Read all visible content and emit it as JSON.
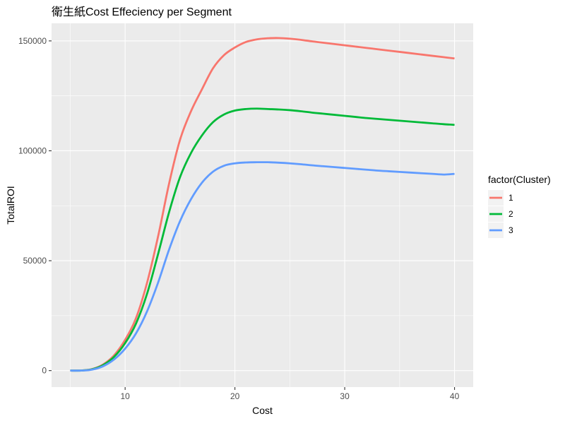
{
  "chart_data": {
    "type": "line",
    "title": "衛生紙Cost Effeciency per Segment",
    "xlabel": "Cost",
    "ylabel": "TotalROI",
    "xlim": [
      3.3,
      41.7
    ],
    "ylim": [
      -7500,
      158000
    ],
    "x_ticks": [
      10,
      20,
      30,
      40
    ],
    "x_tick_labels": [
      "10",
      "20",
      "30",
      "40"
    ],
    "x_minor_ticks": [
      5,
      15,
      25,
      35
    ],
    "y_ticks": [
      0,
      50000,
      100000,
      150000
    ],
    "y_tick_labels": [
      "0",
      "50000",
      "100000",
      "150000"
    ],
    "y_minor_ticks": [
      25000,
      75000,
      125000
    ],
    "grid": true,
    "legend": {
      "title": "factor(Cluster)",
      "position": "right",
      "entries": [
        "1",
        "2",
        "3"
      ]
    },
    "x": [
      5,
      6,
      7,
      8,
      9,
      10,
      11,
      12,
      13,
      14,
      15,
      16,
      17,
      18,
      19,
      20,
      21,
      22,
      23,
      24,
      25,
      26,
      27,
      28,
      29,
      30,
      31,
      32,
      33,
      34,
      35,
      36,
      37,
      38,
      39,
      40
    ],
    "series": [
      {
        "name": "1",
        "color": "#F8766D",
        "values": [
          0,
          50,
          700,
          2800,
          7000,
          14000,
          24000,
          40000,
          61000,
          85000,
          105000,
          118000,
          128000,
          137500,
          143500,
          147000,
          149500,
          150700,
          151200,
          151300,
          151000,
          150500,
          149800,
          149200,
          148600,
          148000,
          147400,
          146800,
          146200,
          145600,
          145000,
          144400,
          143800,
          143200,
          142600,
          142000
        ]
      },
      {
        "name": "2",
        "color": "#00BA38",
        "values": [
          0,
          40,
          600,
          2500,
          6300,
          12500,
          21500,
          35000,
          53000,
          72000,
          88000,
          99000,
          107000,
          113000,
          116500,
          118300,
          119000,
          119200,
          119000,
          118800,
          118500,
          118000,
          117400,
          116900,
          116400,
          115900,
          115400,
          114900,
          114500,
          114100,
          113700,
          113300,
          112900,
          112500,
          112100,
          111800
        ]
      },
      {
        "name": "3",
        "color": "#619CFF",
        "values": [
          0,
          30,
          450,
          2000,
          5100,
          10000,
          17000,
          27000,
          40000,
          55000,
          68000,
          78000,
          85500,
          90500,
          93200,
          94300,
          94700,
          94800,
          94800,
          94600,
          94300,
          93900,
          93400,
          93000,
          92600,
          92200,
          91800,
          91400,
          91000,
          90700,
          90400,
          90100,
          89800,
          89500,
          89200,
          89500
        ]
      }
    ]
  }
}
